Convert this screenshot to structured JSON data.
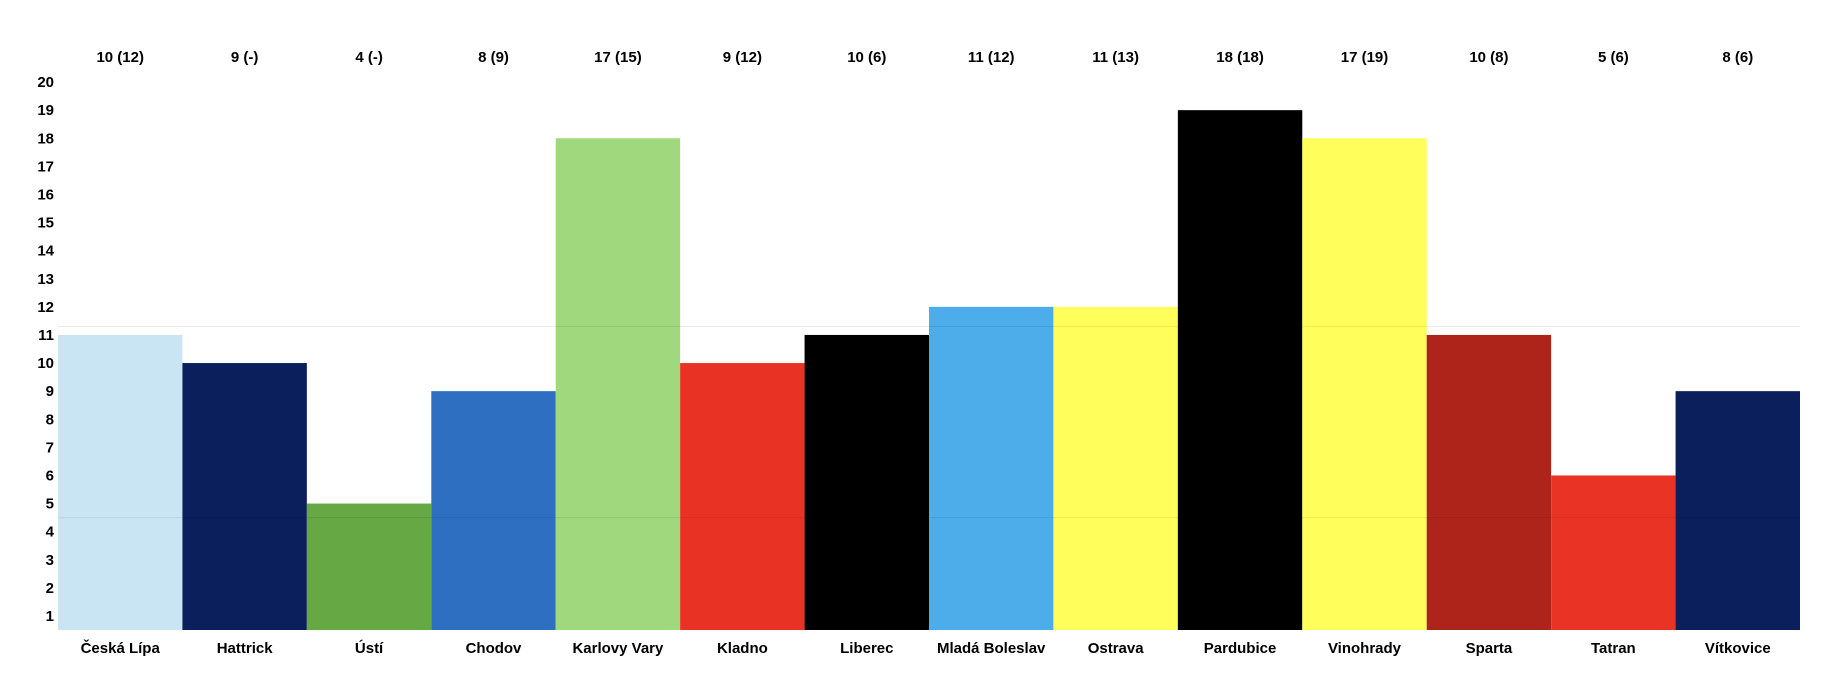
{
  "chart_data": {
    "type": "bar",
    "title": "",
    "xlabel": "",
    "ylabel": "",
    "ylim": [
      0.5,
      20.5
    ],
    "y_ticks": [
      1,
      2,
      3,
      4,
      5,
      6,
      7,
      8,
      9,
      10,
      11,
      12,
      13,
      14,
      15,
      16,
      17,
      18,
      19,
      20
    ],
    "grid": false,
    "legend": "none",
    "categories": [
      "Česká Lípa",
      "Hattrick",
      "Ústí",
      "Chodov",
      "Karlovy Vary",
      "Kladno",
      "Liberec",
      "Mladá Boleslav",
      "Ostrava",
      "Pardubice",
      "Vinohrady",
      "Sparta",
      "Tatran",
      "Vítkovice"
    ],
    "values": [
      10,
      9,
      4,
      8,
      17,
      9,
      10,
      11,
      11,
      18,
      17,
      10,
      5,
      8
    ],
    "top_labels": [
      "10 (12)",
      "9 (-)",
      "4 (-)",
      "8 (9)",
      "17 (15)",
      "9 (12)",
      "10 (6)",
      "11 (12)",
      "11 (13)",
      "18 (18)",
      "17 (19)",
      "10 (8)",
      "5 (6)",
      "8 (6)"
    ],
    "bar_colors": [
      "#c9e5f4",
      "#0b1f5c",
      "#66a844",
      "#2f6fc1",
      "#a0d87e",
      "#e83324",
      "#000000",
      "#4dadea",
      "#fffe5a",
      "#000000",
      "#fffe5a",
      "#ae241a",
      "#e93425",
      "#0b1f5c"
    ]
  }
}
